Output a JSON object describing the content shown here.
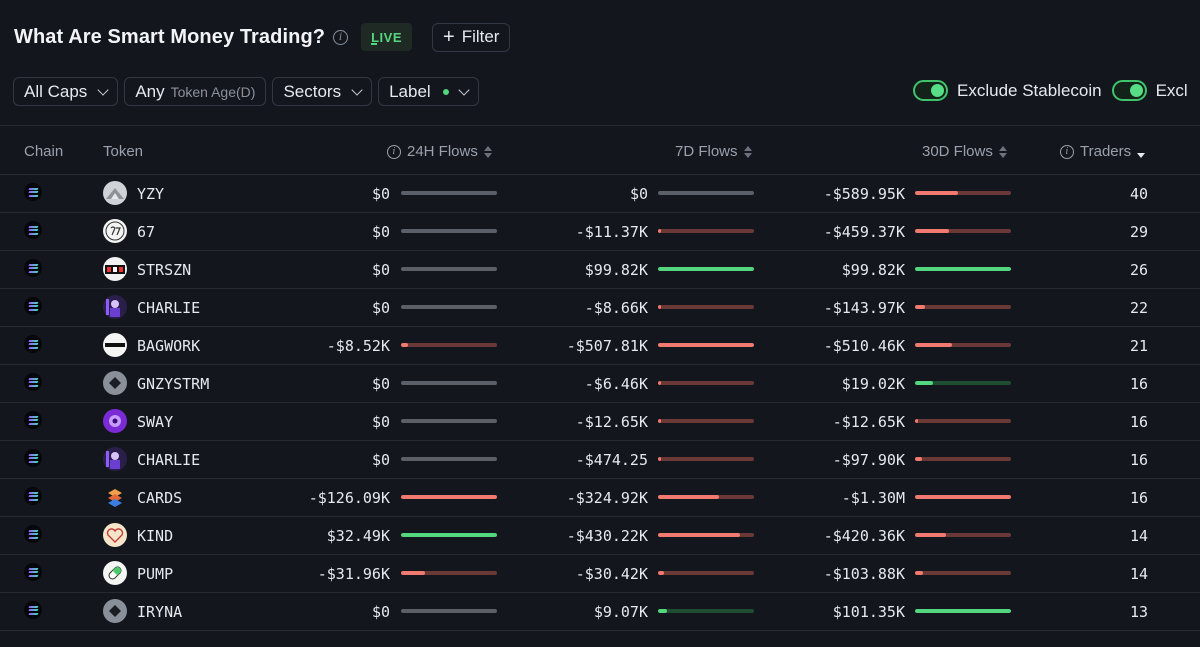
{
  "header": {
    "title": "What Are Smart Money Trading?",
    "info_glyph": "i",
    "live_label": "LIVE",
    "filter_label": "Filter",
    "filter_glyph": "+"
  },
  "toolbar": {
    "caps_label": "All Caps",
    "age_value": "Any",
    "age_label": "Token Age(D)",
    "sectors_label": "Sectors",
    "label_label": "Label",
    "toggle_stablecoin": "Exclude Stablecoin",
    "toggle_second": "Excl"
  },
  "columns": {
    "chain": "Chain",
    "token": "Token",
    "flows_24h": "24H Flows",
    "flows_7d": "7D Flows",
    "flows_30d": "30D Flows",
    "traders": "Traders"
  },
  "colors": {
    "positive": "#53d67e",
    "negative": "#f07a70",
    "neutral": "#5a5f68",
    "background": "#13171d"
  },
  "rows": [
    {
      "token": "YZY",
      "avatar": "mountain-icon",
      "f24": "$0",
      "f24_sign": "zero",
      "f24_level": 0,
      "f7": "$0",
      "f7_sign": "zero",
      "f7_level": 0,
      "f30": "-$589.95K",
      "f30_sign": "neg",
      "f30_level": 0.45,
      "traders": "40"
    },
    {
      "token": "67",
      "avatar": "67-logo",
      "f24": "$0",
      "f24_sign": "zero",
      "f24_level": 0,
      "f7": "-$11.37K",
      "f7_sign": "neg",
      "f7_level": 0.02,
      "f30": "-$459.37K",
      "f30_sign": "neg",
      "f30_level": 0.35,
      "traders": "29"
    },
    {
      "token": "STRSZN",
      "avatar": "szn-logo",
      "f24": "$0",
      "f24_sign": "zero",
      "f24_level": 0,
      "f7": "$99.82K",
      "f7_sign": "pos",
      "f7_level": 1.0,
      "f30": "$99.82K",
      "f30_sign": "pos",
      "f30_level": 1.0,
      "traders": "26"
    },
    {
      "token": "CHARLIE",
      "avatar": "charlie-logo",
      "f24": "$0",
      "f24_sign": "zero",
      "f24_level": 0,
      "f7": "-$8.66K",
      "f7_sign": "neg",
      "f7_level": 0.02,
      "f30": "-$143.97K",
      "f30_sign": "neg",
      "f30_level": 0.1,
      "traders": "22"
    },
    {
      "token": "BAGWORK",
      "avatar": "bagwork-logo",
      "f24": "-$8.52K",
      "f24_sign": "neg",
      "f24_level": 0.07,
      "f7": "-$507.81K",
      "f7_sign": "neg",
      "f7_level": 1.0,
      "f30": "-$510.46K",
      "f30_sign": "neg",
      "f30_level": 0.39,
      "traders": "21"
    },
    {
      "token": "GNZYSTRM",
      "avatar": "diamond-icon",
      "f24": "$0",
      "f24_sign": "zero",
      "f24_level": 0,
      "f7": "-$6.46K",
      "f7_sign": "neg",
      "f7_level": 0.01,
      "f30": "$19.02K",
      "f30_sign": "pos",
      "f30_level": 0.19,
      "traders": "16"
    },
    {
      "token": "SWAY",
      "avatar": "sway-logo",
      "f24": "$0",
      "f24_sign": "zero",
      "f24_level": 0,
      "f7": "-$12.65K",
      "f7_sign": "neg",
      "f7_level": 0.02,
      "f30": "-$12.65K",
      "f30_sign": "neg",
      "f30_level": 0.01,
      "traders": "16"
    },
    {
      "token": "CHARLIE",
      "avatar": "charlie-logo",
      "f24": "$0",
      "f24_sign": "zero",
      "f24_level": 0,
      "f7": "-$474.25",
      "f7_sign": "neg",
      "f7_level": 0.005,
      "f30": "-$97.90K",
      "f30_sign": "neg",
      "f30_level": 0.07,
      "traders": "16"
    },
    {
      "token": "CARDS",
      "avatar": "cards-logo",
      "f24": "-$126.09K",
      "f24_sign": "neg",
      "f24_level": 1.0,
      "f7": "-$324.92K",
      "f7_sign": "neg",
      "f7_level": 0.64,
      "f30": "-$1.30M",
      "f30_sign": "neg",
      "f30_level": 1.0,
      "traders": "16"
    },
    {
      "token": "KIND",
      "avatar": "heart-logo",
      "f24": "$32.49K",
      "f24_sign": "pos",
      "f24_level": 1.0,
      "f7": "-$430.22K",
      "f7_sign": "neg",
      "f7_level": 0.85,
      "f30": "-$420.36K",
      "f30_sign": "neg",
      "f30_level": 0.32,
      "traders": "14"
    },
    {
      "token": "PUMP",
      "avatar": "pill-logo",
      "f24": "-$31.96K",
      "f24_sign": "neg",
      "f24_level": 0.25,
      "f7": "-$30.42K",
      "f7_sign": "neg",
      "f7_level": 0.06,
      "f30": "-$103.88K",
      "f30_sign": "neg",
      "f30_level": 0.08,
      "traders": "14"
    },
    {
      "token": "IRYNA",
      "avatar": "diamond-icon",
      "f24": "$0",
      "f24_sign": "zero",
      "f24_level": 0,
      "f7": "$9.07K",
      "f7_sign": "pos",
      "f7_level": 0.09,
      "f30": "$101.35K",
      "f30_sign": "pos",
      "f30_level": 1.0,
      "traders": "13"
    }
  ]
}
